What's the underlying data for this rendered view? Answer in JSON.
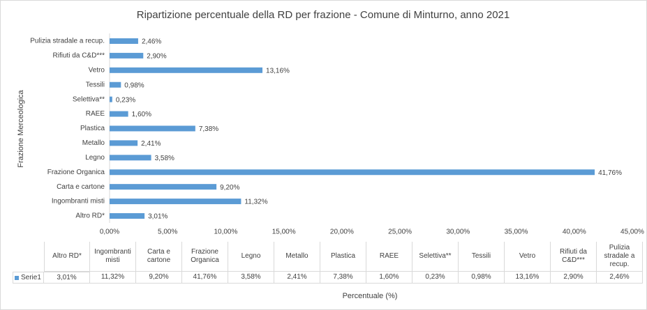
{
  "chart_data": {
    "type": "bar",
    "orientation": "horizontal",
    "title": "Ripartizione percentuale della RD per frazione - Comune di Minturno, anno 2021",
    "x_label": "Percentuale (%)",
    "y_label": "Frazione Merceologica",
    "categories": [
      "Altro RD*",
      "Ingombranti misti",
      "Carta e cartone",
      "Frazione Organica",
      "Legno",
      "Metallo",
      "Plastica",
      "RAEE",
      "Selettiva**",
      "Tessili",
      "Vetro",
      "Rifiuti da C&D***",
      "Pulizia stradale a recup."
    ],
    "series": [
      {
        "name": "Serie1",
        "color": "#5b9bd5",
        "values": [
          3.01,
          11.32,
          9.2,
          41.76,
          3.58,
          2.41,
          7.38,
          1.6,
          0.23,
          0.98,
          13.16,
          2.9,
          2.46
        ],
        "value_labels": [
          "3,01%",
          "11,32%",
          "9,20%",
          "41,76%",
          "3,58%",
          "2,41%",
          "7,38%",
          "1,60%",
          "0,23%",
          "0,98%",
          "13,16%",
          "2,90%",
          "2,46%"
        ]
      }
    ],
    "xlim": [
      0,
      45
    ],
    "xticks": [
      {
        "value": 0,
        "label": "0,00%"
      },
      {
        "value": 5,
        "label": "5,00%"
      },
      {
        "value": 10,
        "label": "10,00%"
      },
      {
        "value": 15,
        "label": "15,00%"
      },
      {
        "value": 20,
        "label": "20,00%"
      },
      {
        "value": 25,
        "label": "25,00%"
      },
      {
        "value": 30,
        "label": "30,00%"
      },
      {
        "value": 35,
        "label": "35,00%"
      },
      {
        "value": 40,
        "label": "40,00%"
      },
      {
        "value": 45,
        "label": "45,00%"
      }
    ],
    "grid": false,
    "data_table": true
  }
}
